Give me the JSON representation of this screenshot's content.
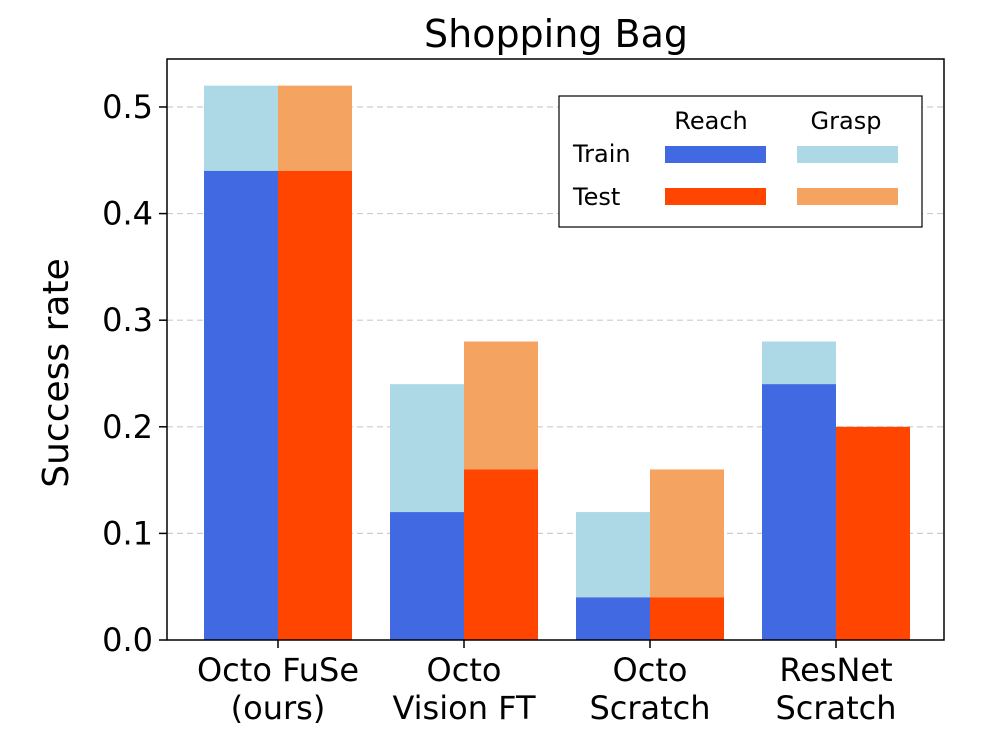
{
  "chart_data": {
    "type": "bar",
    "title": "Shopping Bag",
    "ylabel": "Success rate",
    "xlabel": "",
    "ylim": [
      0,
      0.545
    ],
    "yticks": [
      0.0,
      0.1,
      0.2,
      0.3,
      0.4,
      0.5
    ],
    "ytick_labels": [
      "0.0",
      "0.1",
      "0.2",
      "0.3",
      "0.4",
      "0.5"
    ],
    "grid": "horizontal dashed",
    "legend_position": "top-right",
    "categories": [
      {
        "line1": "Octo FuSe",
        "line2": "(ours)"
      },
      {
        "line1": "Octo",
        "line2": "Vision FT"
      },
      {
        "line1": "Octo",
        "line2": "Scratch"
      },
      {
        "line1": "ResNet",
        "line2": "Scratch"
      }
    ],
    "legend": {
      "col_reach": "Reach",
      "col_grasp": "Grasp",
      "row_train": "Train",
      "row_test": "Test"
    },
    "colors": {
      "train_reach": "#4169e1",
      "train_grasp": "#add8e6",
      "test_reach": "#ff4500",
      "test_grasp": "#f4a460"
    },
    "series": [
      {
        "split": "Train",
        "metric": "Reach",
        "values": [
          0.44,
          0.12,
          0.04,
          0.24
        ]
      },
      {
        "split": "Train",
        "metric": "Grasp",
        "values": [
          0.52,
          0.24,
          0.12,
          0.28
        ]
      },
      {
        "split": "Test",
        "metric": "Reach",
        "values": [
          0.44,
          0.16,
          0.04,
          0.2
        ]
      },
      {
        "split": "Test",
        "metric": "Grasp",
        "values": [
          0.52,
          0.28,
          0.16,
          0.2
        ]
      }
    ]
  }
}
